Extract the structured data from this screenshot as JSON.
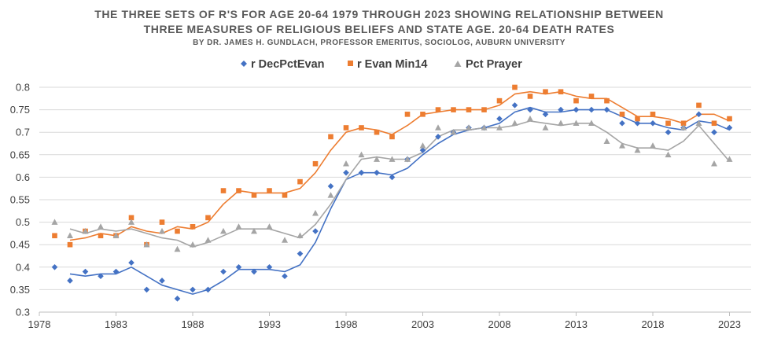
{
  "colors": {
    "evan": "#4472C4",
    "min14": "#ED7D31",
    "prayer": "#A5A5A5",
    "title": "#595959",
    "axis": "#BFBFBF",
    "grid": "#D9D9D9",
    "tick": "#404040"
  },
  "chart_data": {
    "type": "scatter",
    "title_lines": [
      "THE THREE SETS OF R'S FOR AGE 20-64 1979 THROUGH 2023 SHOWING RELATIONSHIP BETWEEN",
      "THREE MEASURES OF RELIGIOUS BELIEFS AND STATE AGE. 20-64 DEATH RATES"
    ],
    "subtitle": "BY DR. JAMES H. GUNDLACH, PROFESSOR EMERITUS, SOCIOLOG, AUBURN UNIVERSITY",
    "xlabel": "",
    "ylabel": "",
    "xlim": [
      1978,
      2024.5
    ],
    "ylim": [
      0.3,
      0.8
    ],
    "x_ticks": [
      1978,
      1983,
      1988,
      1993,
      1998,
      2003,
      2008,
      2013,
      2018,
      2023
    ],
    "x_tick_labels": [
      "1978",
      "1983",
      "1988",
      "1993",
      "1998",
      "2003",
      "2008",
      "2013",
      "2018",
      "2023"
    ],
    "y_ticks": [
      0.3,
      0.35,
      0.4,
      0.45,
      0.5,
      0.55,
      0.6,
      0.65,
      0.7,
      0.75,
      0.8
    ],
    "y_tick_labels": [
      "0.3",
      "0.35",
      "0.4",
      "0.45",
      "0.5",
      "0.55",
      "0.6",
      "0.65",
      "0.7",
      "0.75",
      "0.8"
    ],
    "grid": "horizontal",
    "trendline": "2-year moving average",
    "legend_position": "top-center",
    "x": [
      1979,
      1980,
      1981,
      1982,
      1983,
      1984,
      1985,
      1986,
      1987,
      1988,
      1989,
      1990,
      1991,
      1992,
      1993,
      1994,
      1995,
      1996,
      1997,
      1998,
      1999,
      2000,
      2001,
      2002,
      2003,
      2004,
      2005,
      2006,
      2007,
      2008,
      2009,
      2010,
      2011,
      2012,
      2013,
      2014,
      2015,
      2016,
      2017,
      2018,
      2019,
      2020,
      2021,
      2022,
      2023
    ],
    "series": [
      {
        "name": "r DecPctEvan",
        "key": "evan",
        "marker": "diamond",
        "values": [
          0.4,
          0.37,
          0.39,
          0.38,
          0.39,
          0.41,
          0.35,
          0.37,
          0.33,
          0.35,
          0.35,
          0.39,
          0.4,
          0.39,
          0.4,
          0.38,
          0.43,
          0.48,
          0.58,
          0.61,
          0.61,
          0.61,
          0.6,
          0.64,
          0.66,
          0.69,
          0.7,
          0.71,
          0.71,
          0.73,
          0.76,
          0.75,
          0.74,
          0.75,
          0.75,
          0.75,
          0.75,
          0.72,
          0.72,
          0.72,
          0.7,
          0.71,
          0.74,
          0.7,
          0.71
        ]
      },
      {
        "name": "r Evan Min14",
        "key": "min14",
        "marker": "square",
        "values": [
          0.47,
          0.45,
          0.48,
          0.47,
          0.47,
          0.51,
          0.45,
          0.5,
          0.48,
          0.49,
          0.51,
          0.57,
          0.57,
          0.56,
          0.57,
          0.56,
          0.59,
          0.63,
          0.69,
          0.71,
          0.71,
          0.7,
          0.69,
          0.74,
          0.74,
          0.75,
          0.75,
          0.75,
          0.75,
          0.77,
          0.8,
          0.78,
          0.79,
          0.79,
          0.77,
          0.78,
          0.77,
          0.74,
          0.73,
          0.74,
          0.72,
          0.72,
          0.76,
          0.72,
          0.73
        ]
      },
      {
        "name": "Pct Prayer",
        "key": "prayer",
        "marker": "triangle",
        "values": [
          0.5,
          0.47,
          0.48,
          0.49,
          0.47,
          0.5,
          0.45,
          0.48,
          0.44,
          0.45,
          0.46,
          0.48,
          0.49,
          0.48,
          0.49,
          0.46,
          0.47,
          0.52,
          0.56,
          0.63,
          0.65,
          0.64,
          0.64,
          0.64,
          0.67,
          0.71,
          0.7,
          0.71,
          0.71,
          0.71,
          0.72,
          0.73,
          0.71,
          0.72,
          0.72,
          0.72,
          0.68,
          0.67,
          0.66,
          0.67,
          0.65,
          0.71,
          0.72,
          0.63,
          0.64
        ]
      }
    ]
  }
}
